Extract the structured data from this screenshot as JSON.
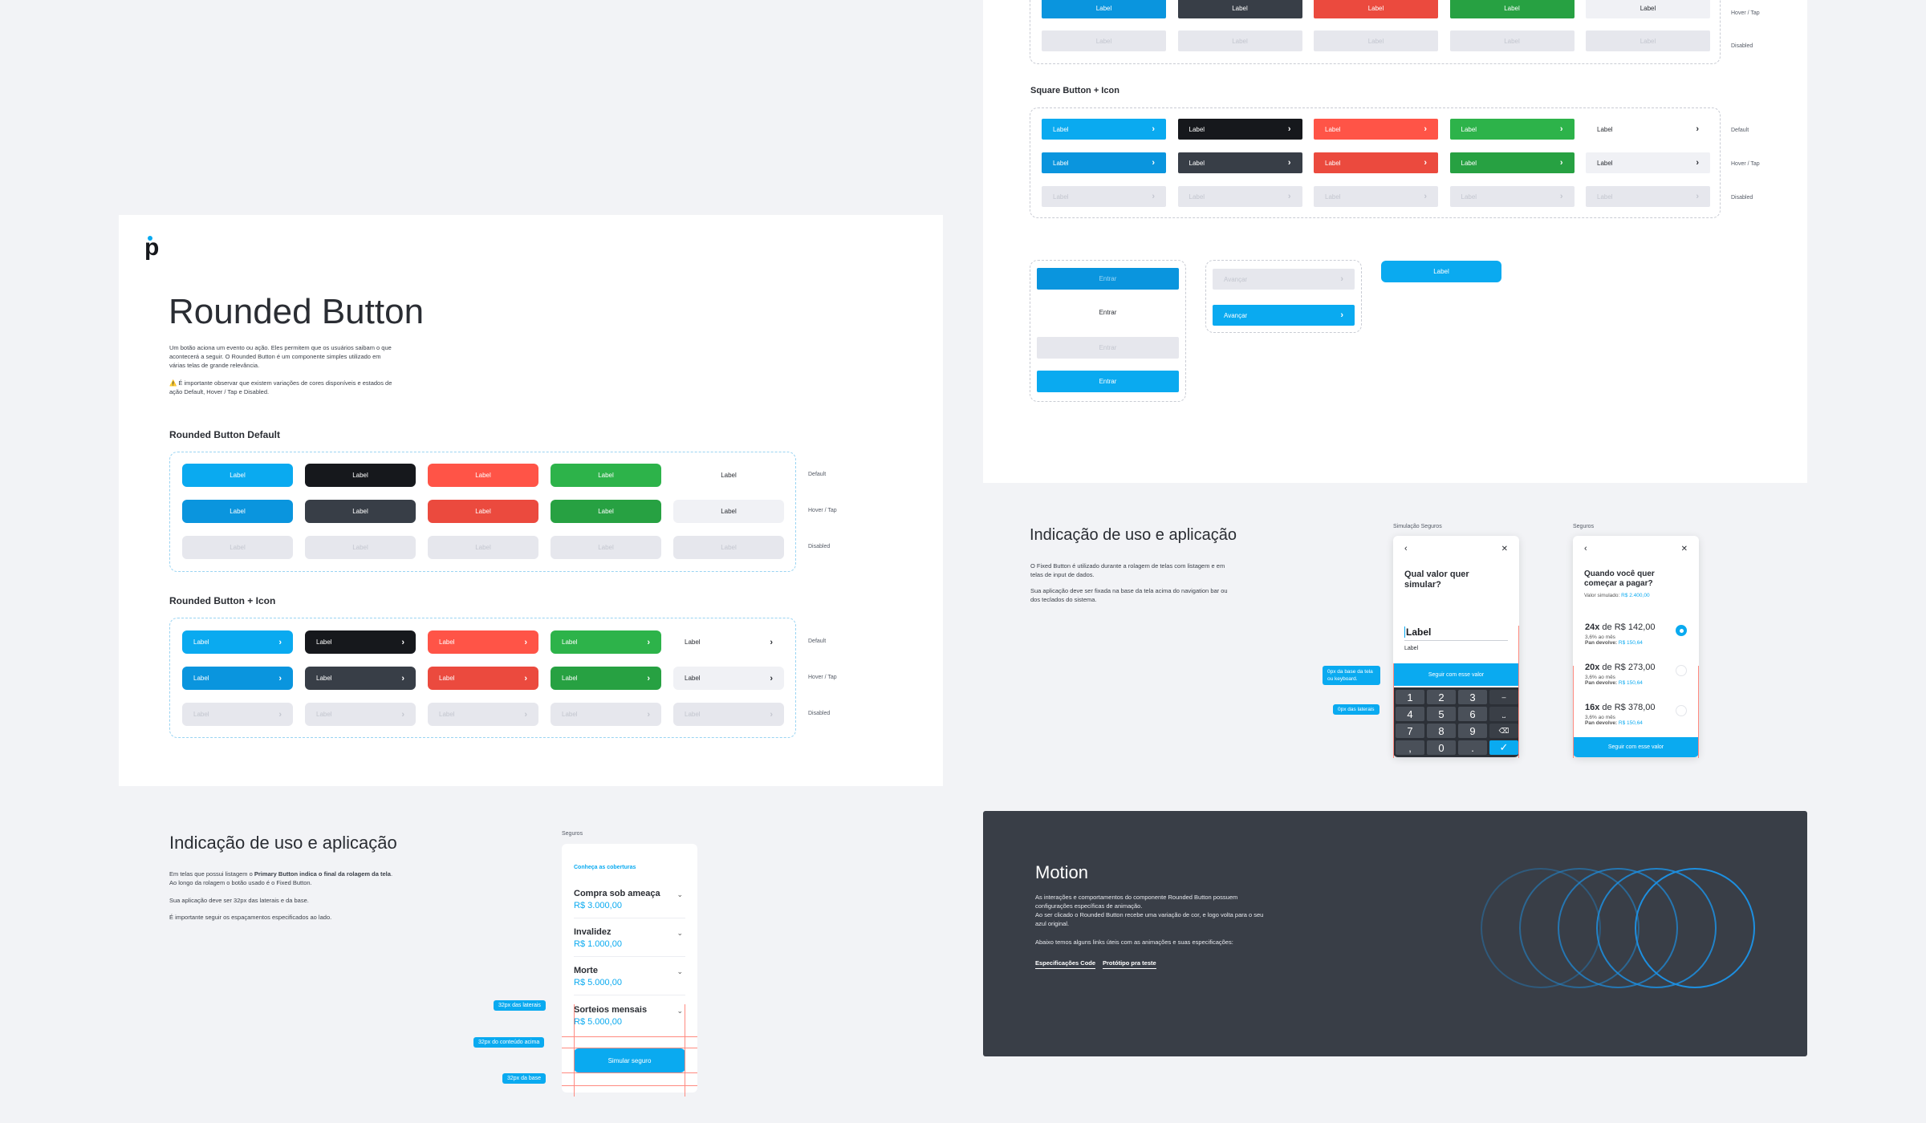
{
  "left_panel": {
    "logo": "p",
    "title": "Rounded Button",
    "intro_1": "Um botão aciona um evento ou ação. Eles permitem que os usuários saibam o que acontecerá a seguir. O Rounded Button é um componente simples utilizado em várias telas de grande relevância.",
    "intro_2": "⚠️ É importante observar que existem variações de cores disponíveis e estados de ação Default, Hover / Tap e Disabled.",
    "section_default": "Rounded Button Default",
    "section_icon": "Rounded Button + Icon",
    "button_label": "Label",
    "states": [
      "Default",
      "Hover / Tap",
      "Disabled"
    ]
  },
  "right_top": {
    "section_square_icon": "Square Button + Icon",
    "states": [
      "Hover / Tap",
      "Disabled",
      "Default",
      "Hover / Tap",
      "Disabled"
    ],
    "button_label": "Label",
    "demo": {
      "entrar": "Entrar",
      "avancar": "Avançar",
      "label": "Label"
    }
  },
  "usage_left": {
    "title": "Indicação de uso e aplicação",
    "p1_a": "Em telas que possui listagem o ",
    "p1_b": "Primary Button indica o final da rolagem da tela",
    "p1_c": ". Ao longo da rolagem o botão usado é o Fixed Button.",
    "p2": "Sua aplicação deve ser 32px das laterais e da base.",
    "p3": "É importante seguir os espaçamentos especificados ao lado.",
    "screen_label": "Seguros",
    "link": "Conheça as coberturas",
    "items": [
      {
        "title": "Compra sob ameaça",
        "value": "R$ 3.000,00"
      },
      {
        "title": "Invalidez",
        "value": "R$ 1.000,00"
      },
      {
        "title": "Morte",
        "value": "R$ 5.000,00"
      },
      {
        "title": "Sorteios mensais",
        "value": "R$ 5.000,00"
      }
    ],
    "cta": "Simular seguro",
    "tags": [
      "32px das laterais",
      "32px do conteúdo acima",
      "32px da base"
    ]
  },
  "usage_right": {
    "title": "Indicação de uso e aplicação",
    "p1": "O Fixed Button é utilizado durante a rolagem de telas com listagem e em telas de input de dados.",
    "p2": "Sua aplicação deve ser fixada na base da tela acima do navigation bar ou dos teclados do sistema.",
    "screen1_label": "Simulação Seguros",
    "screen1_question": "Qual valor quer simular?",
    "screen1_input": "Label",
    "screen1_sub": "Label",
    "screen1_cta": "Seguir com esse valor",
    "keys": [
      "1",
      "2",
      "3",
      "–",
      "4",
      "5",
      "6",
      "⎵",
      "7",
      "8",
      "9",
      "⌫",
      ",",
      "0",
      ".",
      "✓"
    ],
    "tags": [
      "0px da base da tela ou keyboard.",
      "0px das laterais"
    ],
    "screen2_label": "Seguros",
    "screen2_question": "Quando você quer começar a pagar?",
    "screen2_sim_label": "Valor simulado:",
    "screen2_sim_value": "R$ 2.400,00",
    "options": [
      {
        "times": "24x",
        "de": "de",
        "price": "R$ 142,00",
        "rate": "3,6% ao mês",
        "pay_label": "Pan devolve:",
        "pay_value": "R$ 150,64",
        "selected": true
      },
      {
        "times": "20x",
        "de": "de",
        "price": "R$ 273,00",
        "rate": "3,6% ao mês",
        "pay_label": "Pan devolve:",
        "pay_value": "R$ 150,64",
        "selected": false
      },
      {
        "times": "16x",
        "de": "de",
        "price": "R$ 378,00",
        "rate": "3,6% ao mês",
        "pay_label": "Pan devolve:",
        "pay_value": "R$ 150,64",
        "selected": false
      }
    ],
    "screen2_cta": "Seguir com esse valor"
  },
  "motion": {
    "title": "Motion",
    "p1": "As interações e comportamentos do componente Rounded Button possuem configurações específicas de animação.",
    "p2": "Ao ser clicado o Rounded Button recebe uma variação de cor, e logo volta para o seu azul original.",
    "p3": "Abaixo temos alguns links úteis com as animações e suas especificações:",
    "link1": "Especificações Code",
    "link2": "Protótipo pra teste",
    "accent": "#1d8fe0"
  },
  "colors": {
    "blue": "#0aaaf0",
    "black": "#16181c",
    "red": "#ff5447",
    "green": "#2db34a",
    "dark_panel": "#393e47"
  }
}
